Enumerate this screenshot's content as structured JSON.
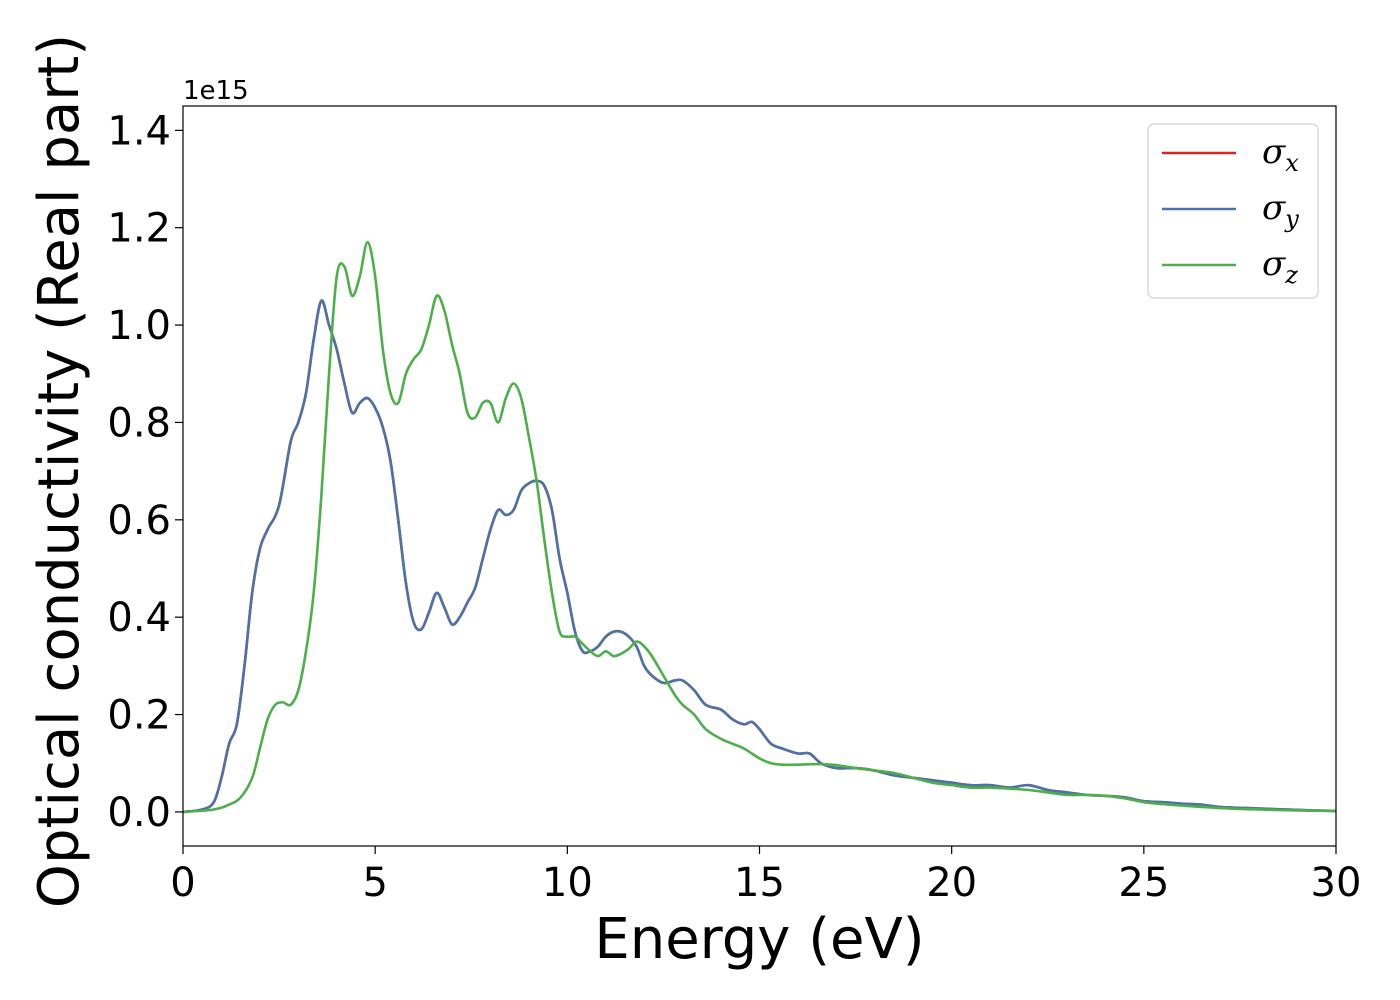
{
  "chart_data": {
    "type": "line",
    "xlabel": "Energy (eV)",
    "ylabel": "Optical conductivity (Real part)",
    "y_offset_label": "1e15",
    "xlim": [
      0,
      30
    ],
    "ylim": [
      -0.07,
      1.45
    ],
    "xticks": [
      0,
      5,
      10,
      15,
      20,
      25,
      30
    ],
    "xtick_labels": [
      "0",
      "5",
      "10",
      "15",
      "20",
      "25",
      "30"
    ],
    "yticks": [
      0.0,
      0.2,
      0.4,
      0.6,
      0.8,
      1.0,
      1.2,
      1.4
    ],
    "ytick_labels": [
      "0.0",
      "0.2",
      "0.4",
      "0.6",
      "0.8",
      "1.0",
      "1.2",
      "1.4"
    ],
    "grid": false,
    "legend_position": "top-right",
    "series": [
      {
        "name": "σ",
        "sub": "x",
        "color": "#d62728",
        "x": [
          0,
          0.5,
          0.8,
          1.0,
          1.2,
          1.4,
          1.6,
          1.8,
          2.0,
          2.2,
          2.5,
          2.8,
          3.0,
          3.2,
          3.4,
          3.6,
          3.8,
          4.0,
          4.2,
          4.4,
          4.6,
          4.8,
          5.0,
          5.2,
          5.4,
          5.6,
          5.8,
          6.0,
          6.2,
          6.4,
          6.6,
          6.8,
          7.0,
          7.2,
          7.4,
          7.6,
          7.8,
          8.0,
          8.2,
          8.4,
          8.6,
          8.8,
          9.0,
          9.2,
          9.4,
          9.6,
          9.8,
          10.0,
          10.2,
          10.4,
          10.6,
          10.8,
          11.0,
          11.2,
          11.4,
          11.6,
          11.8,
          12.0,
          12.2,
          12.5,
          12.8,
          13.0,
          13.3,
          13.6,
          14.0,
          14.3,
          14.6,
          14.8,
          15.0,
          15.3,
          15.6,
          16.0,
          16.3,
          16.6,
          17.0,
          17.5,
          18.0,
          18.5,
          19.0,
          19.5,
          20.0,
          20.5,
          21.0,
          21.5,
          22.0,
          22.5,
          23.0,
          23.5,
          24.0,
          24.5,
          25.0,
          25.5,
          26.0,
          26.5,
          27.0,
          28.0,
          29.0,
          30.0
        ],
        "values": [
          0,
          0.005,
          0.02,
          0.07,
          0.14,
          0.18,
          0.3,
          0.45,
          0.54,
          0.58,
          0.63,
          0.76,
          0.8,
          0.86,
          0.97,
          1.05,
          1.0,
          0.95,
          0.88,
          0.82,
          0.84,
          0.85,
          0.83,
          0.79,
          0.72,
          0.6,
          0.47,
          0.39,
          0.375,
          0.41,
          0.45,
          0.42,
          0.385,
          0.4,
          0.43,
          0.46,
          0.52,
          0.58,
          0.62,
          0.61,
          0.62,
          0.66,
          0.675,
          0.68,
          0.67,
          0.62,
          0.52,
          0.45,
          0.37,
          0.33,
          0.33,
          0.34,
          0.36,
          0.37,
          0.37,
          0.36,
          0.34,
          0.3,
          0.28,
          0.265,
          0.27,
          0.27,
          0.25,
          0.22,
          0.21,
          0.19,
          0.18,
          0.185,
          0.17,
          0.14,
          0.13,
          0.12,
          0.12,
          0.1,
          0.09,
          0.09,
          0.085,
          0.075,
          0.07,
          0.065,
          0.06,
          0.055,
          0.055,
          0.05,
          0.055,
          0.045,
          0.04,
          0.035,
          0.033,
          0.03,
          0.022,
          0.02,
          0.017,
          0.015,
          0.01,
          0.007,
          0.004,
          0.002
        ]
      },
      {
        "name": "σ",
        "sub": "y",
        "color": "#4a73aa",
        "x": [
          0,
          0.5,
          0.8,
          1.0,
          1.2,
          1.4,
          1.6,
          1.8,
          2.0,
          2.2,
          2.5,
          2.8,
          3.0,
          3.2,
          3.4,
          3.6,
          3.8,
          4.0,
          4.2,
          4.4,
          4.6,
          4.8,
          5.0,
          5.2,
          5.4,
          5.6,
          5.8,
          6.0,
          6.2,
          6.4,
          6.6,
          6.8,
          7.0,
          7.2,
          7.4,
          7.6,
          7.8,
          8.0,
          8.2,
          8.4,
          8.6,
          8.8,
          9.0,
          9.2,
          9.4,
          9.6,
          9.8,
          10.0,
          10.2,
          10.4,
          10.6,
          10.8,
          11.0,
          11.2,
          11.4,
          11.6,
          11.8,
          12.0,
          12.2,
          12.5,
          12.8,
          13.0,
          13.3,
          13.6,
          14.0,
          14.3,
          14.6,
          14.8,
          15.0,
          15.3,
          15.6,
          16.0,
          16.3,
          16.6,
          17.0,
          17.5,
          18.0,
          18.5,
          19.0,
          19.5,
          20.0,
          20.5,
          21.0,
          21.5,
          22.0,
          22.5,
          23.0,
          23.5,
          24.0,
          24.5,
          25.0,
          25.5,
          26.0,
          26.5,
          27.0,
          28.0,
          29.0,
          30.0
        ],
        "values": [
          0,
          0.005,
          0.02,
          0.07,
          0.14,
          0.18,
          0.3,
          0.45,
          0.54,
          0.58,
          0.63,
          0.76,
          0.8,
          0.86,
          0.97,
          1.05,
          1.0,
          0.95,
          0.88,
          0.82,
          0.84,
          0.85,
          0.83,
          0.79,
          0.72,
          0.6,
          0.47,
          0.39,
          0.375,
          0.41,
          0.45,
          0.42,
          0.385,
          0.4,
          0.43,
          0.46,
          0.52,
          0.58,
          0.62,
          0.61,
          0.62,
          0.66,
          0.675,
          0.68,
          0.67,
          0.62,
          0.52,
          0.45,
          0.37,
          0.33,
          0.33,
          0.34,
          0.36,
          0.37,
          0.37,
          0.36,
          0.34,
          0.3,
          0.28,
          0.265,
          0.27,
          0.27,
          0.25,
          0.22,
          0.21,
          0.19,
          0.18,
          0.185,
          0.17,
          0.14,
          0.13,
          0.12,
          0.12,
          0.1,
          0.09,
          0.09,
          0.085,
          0.075,
          0.07,
          0.065,
          0.06,
          0.055,
          0.055,
          0.05,
          0.055,
          0.045,
          0.04,
          0.035,
          0.033,
          0.03,
          0.022,
          0.02,
          0.017,
          0.015,
          0.01,
          0.007,
          0.004,
          0.002
        ]
      },
      {
        "name": "σ",
        "sub": "z",
        "color": "#4daf4a",
        "x": [
          0,
          0.8,
          1.2,
          1.5,
          1.8,
          2.0,
          2.2,
          2.4,
          2.6,
          2.8,
          3.0,
          3.2,
          3.4,
          3.6,
          3.8,
          4.0,
          4.2,
          4.4,
          4.6,
          4.8,
          5.0,
          5.2,
          5.4,
          5.6,
          5.8,
          6.0,
          6.2,
          6.4,
          6.6,
          6.8,
          7.0,
          7.2,
          7.4,
          7.6,
          7.8,
          8.0,
          8.2,
          8.4,
          8.6,
          8.8,
          9.0,
          9.2,
          9.4,
          9.6,
          9.8,
          10.0,
          10.2,
          10.4,
          10.6,
          10.8,
          11.0,
          11.2,
          11.4,
          11.6,
          11.8,
          12.0,
          12.2,
          12.5,
          12.8,
          13.0,
          13.3,
          13.6,
          14.0,
          14.3,
          14.6,
          15.0,
          15.3,
          15.6,
          16.0,
          16.3,
          16.6,
          17.0,
          17.5,
          18.0,
          18.5,
          19.0,
          19.5,
          20.0,
          20.5,
          21.0,
          21.5,
          22.0,
          22.5,
          23.0,
          23.5,
          24.0,
          24.5,
          25.0,
          25.5,
          26.0,
          27.0,
          28.0,
          29.0,
          30.0
        ],
        "values": [
          0,
          0.005,
          0.015,
          0.03,
          0.07,
          0.13,
          0.19,
          0.22,
          0.225,
          0.22,
          0.25,
          0.33,
          0.45,
          0.65,
          0.9,
          1.1,
          1.12,
          1.06,
          1.1,
          1.17,
          1.1,
          0.95,
          0.86,
          0.84,
          0.9,
          0.93,
          0.95,
          1.0,
          1.06,
          1.03,
          0.96,
          0.9,
          0.82,
          0.81,
          0.84,
          0.84,
          0.8,
          0.85,
          0.88,
          0.85,
          0.77,
          0.68,
          0.56,
          0.45,
          0.37,
          0.36,
          0.36,
          0.345,
          0.33,
          0.32,
          0.33,
          0.32,
          0.325,
          0.335,
          0.35,
          0.34,
          0.32,
          0.28,
          0.24,
          0.22,
          0.2,
          0.17,
          0.15,
          0.14,
          0.13,
          0.11,
          0.1,
          0.097,
          0.097,
          0.098,
          0.098,
          0.096,
          0.09,
          0.085,
          0.08,
          0.07,
          0.06,
          0.055,
          0.05,
          0.05,
          0.048,
          0.045,
          0.04,
          0.035,
          0.035,
          0.033,
          0.028,
          0.02,
          0.016,
          0.013,
          0.008,
          0.005,
          0.003,
          0.002
        ]
      }
    ]
  }
}
